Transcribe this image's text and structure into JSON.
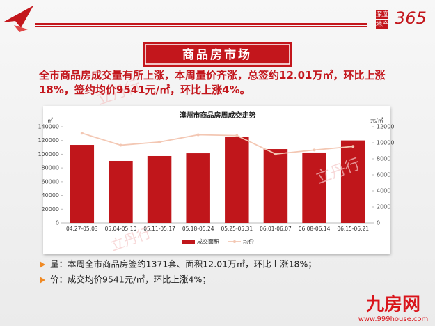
{
  "header": {
    "logo_text": [
      "深度",
      "地产"
    ],
    "logo_number": "365",
    "banner": "商品房市场"
  },
  "summary": "全市商品房成交量有所上涨，本周量价齐涨，总签约12.01万㎡，环比上涨18%，签约均价9541元/㎡，环比上涨4%。",
  "chart_data": {
    "type": "bar",
    "title": "漳州市商品房周成交走势",
    "y_unit": "㎡",
    "y2_unit": "元/㎡",
    "categories": [
      "04.27-05.03",
      "05.04-05.10",
      "05.11-05.17",
      "05.18-05.24",
      "05.25-05.31",
      "06.01-06.07",
      "06.08-06.14",
      "06.15-06.21"
    ],
    "series": [
      {
        "name": "成交面积",
        "color": "#c0161b",
        "values": [
          113600,
          90300,
          97400,
          101400,
          124800,
          107500,
          102500,
          120100
        ]
      },
      {
        "name": "均价",
        "type": "line",
        "axis": "y2",
        "color": "#f3c7b3",
        "values": [
          11200,
          9700,
          10100,
          11000,
          10900,
          8600,
          9100,
          9541
        ]
      }
    ],
    "ylim": [
      0,
      140000
    ],
    "yticks": [
      0,
      20000,
      40000,
      60000,
      80000,
      100000,
      120000,
      140000
    ],
    "y2lim": [
      0,
      12000
    ],
    "y2ticks": [
      0,
      2000,
      4000,
      6000,
      8000,
      10000,
      12000
    ],
    "legend": "bottom"
  },
  "bullets": [
    "量：本周全市商品房签约1371套、面积12.01万㎡，环比上涨18%；",
    "价：成交均价9541元/㎡，环比上涨4%；"
  ],
  "watermark": "立丹行",
  "footer": {
    "brand": "九房网",
    "url": "www.999house.com"
  }
}
